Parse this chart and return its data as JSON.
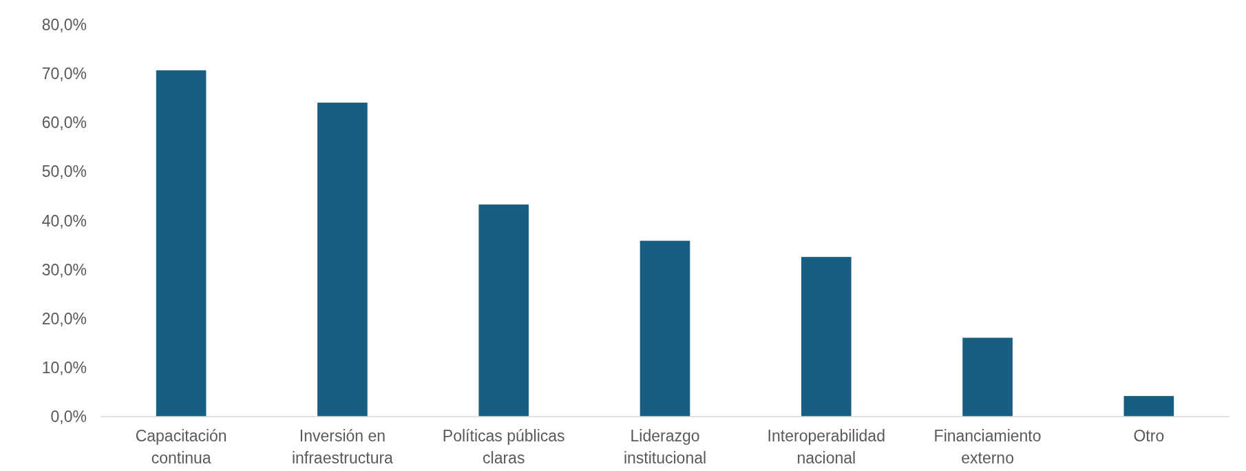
{
  "chart_data": {
    "type": "bar",
    "categories": [
      "Capacitación continua",
      "Inversión en infraestructura",
      "Políticas públicas claras",
      "Liderazgo institucional",
      "Interoperabilidad nacional",
      "Financiamiento externo",
      "Otro"
    ],
    "values": [
      70.7,
      64.1,
      43.3,
      35.9,
      32.6,
      16.1,
      4.2
    ],
    "color": "#175e80",
    "ylim": [
      0,
      80
    ],
    "yticks": [
      {
        "value": 0,
        "label": "0,0%"
      },
      {
        "value": 10,
        "label": "10,0%"
      },
      {
        "value": 20,
        "label": "20,0%"
      },
      {
        "value": 30,
        "label": "30,0%"
      },
      {
        "value": 40,
        "label": "40,0%"
      },
      {
        "value": 50,
        "label": "50,0%"
      },
      {
        "value": 60,
        "label": "60,0%"
      },
      {
        "value": 70,
        "label": "70,0%"
      },
      {
        "value": 80,
        "label": "80,0%"
      }
    ],
    "grid": false
  }
}
